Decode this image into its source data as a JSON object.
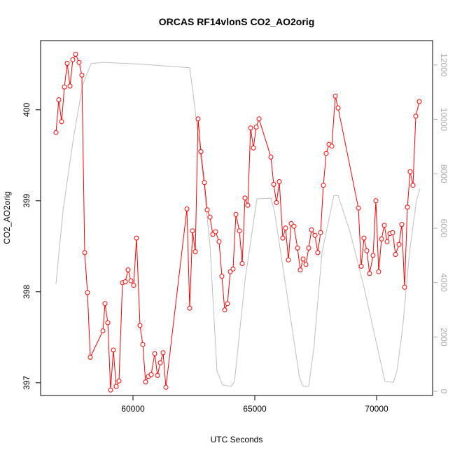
{
  "chart_data": {
    "type": "line",
    "title": "ORCAS RF14vlonS CO2_AO2orig",
    "xlabel": "UTC Seconds",
    "ylabel": "CO2_AO2orig",
    "xlim": [
      56207,
      72299
    ],
    "xticks": [
      60000,
      65000,
      70000
    ],
    "ylim": [
      396.86,
      400.76
    ],
    "yticks": [
      397,
      398,
      399,
      400
    ],
    "y2lim": [
      -154,
      12897
    ],
    "y2ticks": [
      0,
      2000,
      4000,
      6000,
      8000,
      10000,
      12000
    ],
    "series": [
      {
        "color": "#ff0000",
        "markers": true,
        "x": [
          56839,
          56954,
          57069,
          57184,
          57299,
          57414,
          57529,
          57644,
          57787,
          57902,
          58017,
          58132,
          58247,
          58764,
          58851,
          58966,
          59080,
          59195,
          59310,
          59425,
          59569,
          59684,
          59799,
          59914,
          60029,
          60144,
          60287,
          60402,
          60517,
          60632,
          60747,
          60891,
          61006,
          61121,
          61236,
          61351,
          62213,
          62328,
          62443,
          62558,
          62672,
          62787,
          62931,
          63046,
          63161,
          63276,
          63391,
          63534,
          63649,
          63764,
          63879,
          63994,
          64109,
          64224,
          64368,
          64483,
          64598,
          64713,
          64828,
          64943,
          65058,
          65173,
          65661,
          65776,
          65891,
          66006,
          66149,
          66264,
          66379,
          66494,
          66609,
          66753,
          66868,
          66983,
          67098,
          67213,
          67328,
          67471,
          67586,
          67701,
          67816,
          67931,
          68046,
          68161,
          68305,
          68420,
          69253,
          69368,
          69483,
          69598,
          69713,
          69856,
          69971,
          70086,
          70201,
          70316,
          70431,
          70546,
          70661,
          70776,
          70920,
          71034,
          71149,
          71264,
          71379,
          71494,
          71609,
          71753
        ],
        "values": [
          399.75,
          400.11,
          399.87,
          400.25,
          400.51,
          400.26,
          400.55,
          400.61,
          400.52,
          400.38,
          398.43,
          397.99,
          397.28,
          397.57,
          397.87,
          397.66,
          396.92,
          397.36,
          396.96,
          397.02,
          398.1,
          398.11,
          398.24,
          398.12,
          398.07,
          398.59,
          397.63,
          397.42,
          397.01,
          397.07,
          397.09,
          397.32,
          397.08,
          397.22,
          397.33,
          396.95,
          398.91,
          397.82,
          398.67,
          398.44,
          399.9,
          399.54,
          399.2,
          398.9,
          398.82,
          398.63,
          398.66,
          398.55,
          398.17,
          397.8,
          397.87,
          398.22,
          398.25,
          398.85,
          398.67,
          398.31,
          399.03,
          398.95,
          399.8,
          399.58,
          399.81,
          399.9,
          399.48,
          399.18,
          398.98,
          399.21,
          398.59,
          398.7,
          398.35,
          398.75,
          398.72,
          398.48,
          398.24,
          398.36,
          398.3,
          398.48,
          398.68,
          398.62,
          398.43,
          398.65,
          399.17,
          399.52,
          399.62,
          399.6,
          400.15,
          400.02,
          398.92,
          398.28,
          398.59,
          398.45,
          398.2,
          398.4,
          399.0,
          398.22,
          398.58,
          398.73,
          398.55,
          398.64,
          398.65,
          398.41,
          398.52,
          398.74,
          398.05,
          398.93,
          399.32,
          399.17,
          399.93,
          400.09
        ]
      },
      {
        "color": "#bebebe",
        "axis": "y2",
        "x": [
          56839,
          57127,
          57558,
          57931,
          58276,
          58764,
          60287,
          62328,
          62443,
          62874,
          63161,
          63448,
          63678,
          64023,
          64167,
          64598,
          65086,
          65661,
          65805,
          66322,
          66839,
          66983,
          67213,
          67414,
          67759,
          68247,
          68420,
          68908,
          69483,
          70057,
          70345,
          70690,
          70833,
          71063,
          71351,
          71638,
          71782
        ],
        "values": [
          3950,
          6640,
          9330,
          11260,
          12050,
          12100,
          12030,
          11900,
          11130,
          7920,
          5360,
          740,
          230,
          180,
          360,
          4080,
          7080,
          7100,
          6640,
          3560,
          490,
          180,
          180,
          1510,
          5100,
          7200,
          7200,
          5870,
          3820,
          1510,
          360,
          330,
          740,
          2280,
          5100,
          7030,
          7460
        ]
      }
    ]
  }
}
